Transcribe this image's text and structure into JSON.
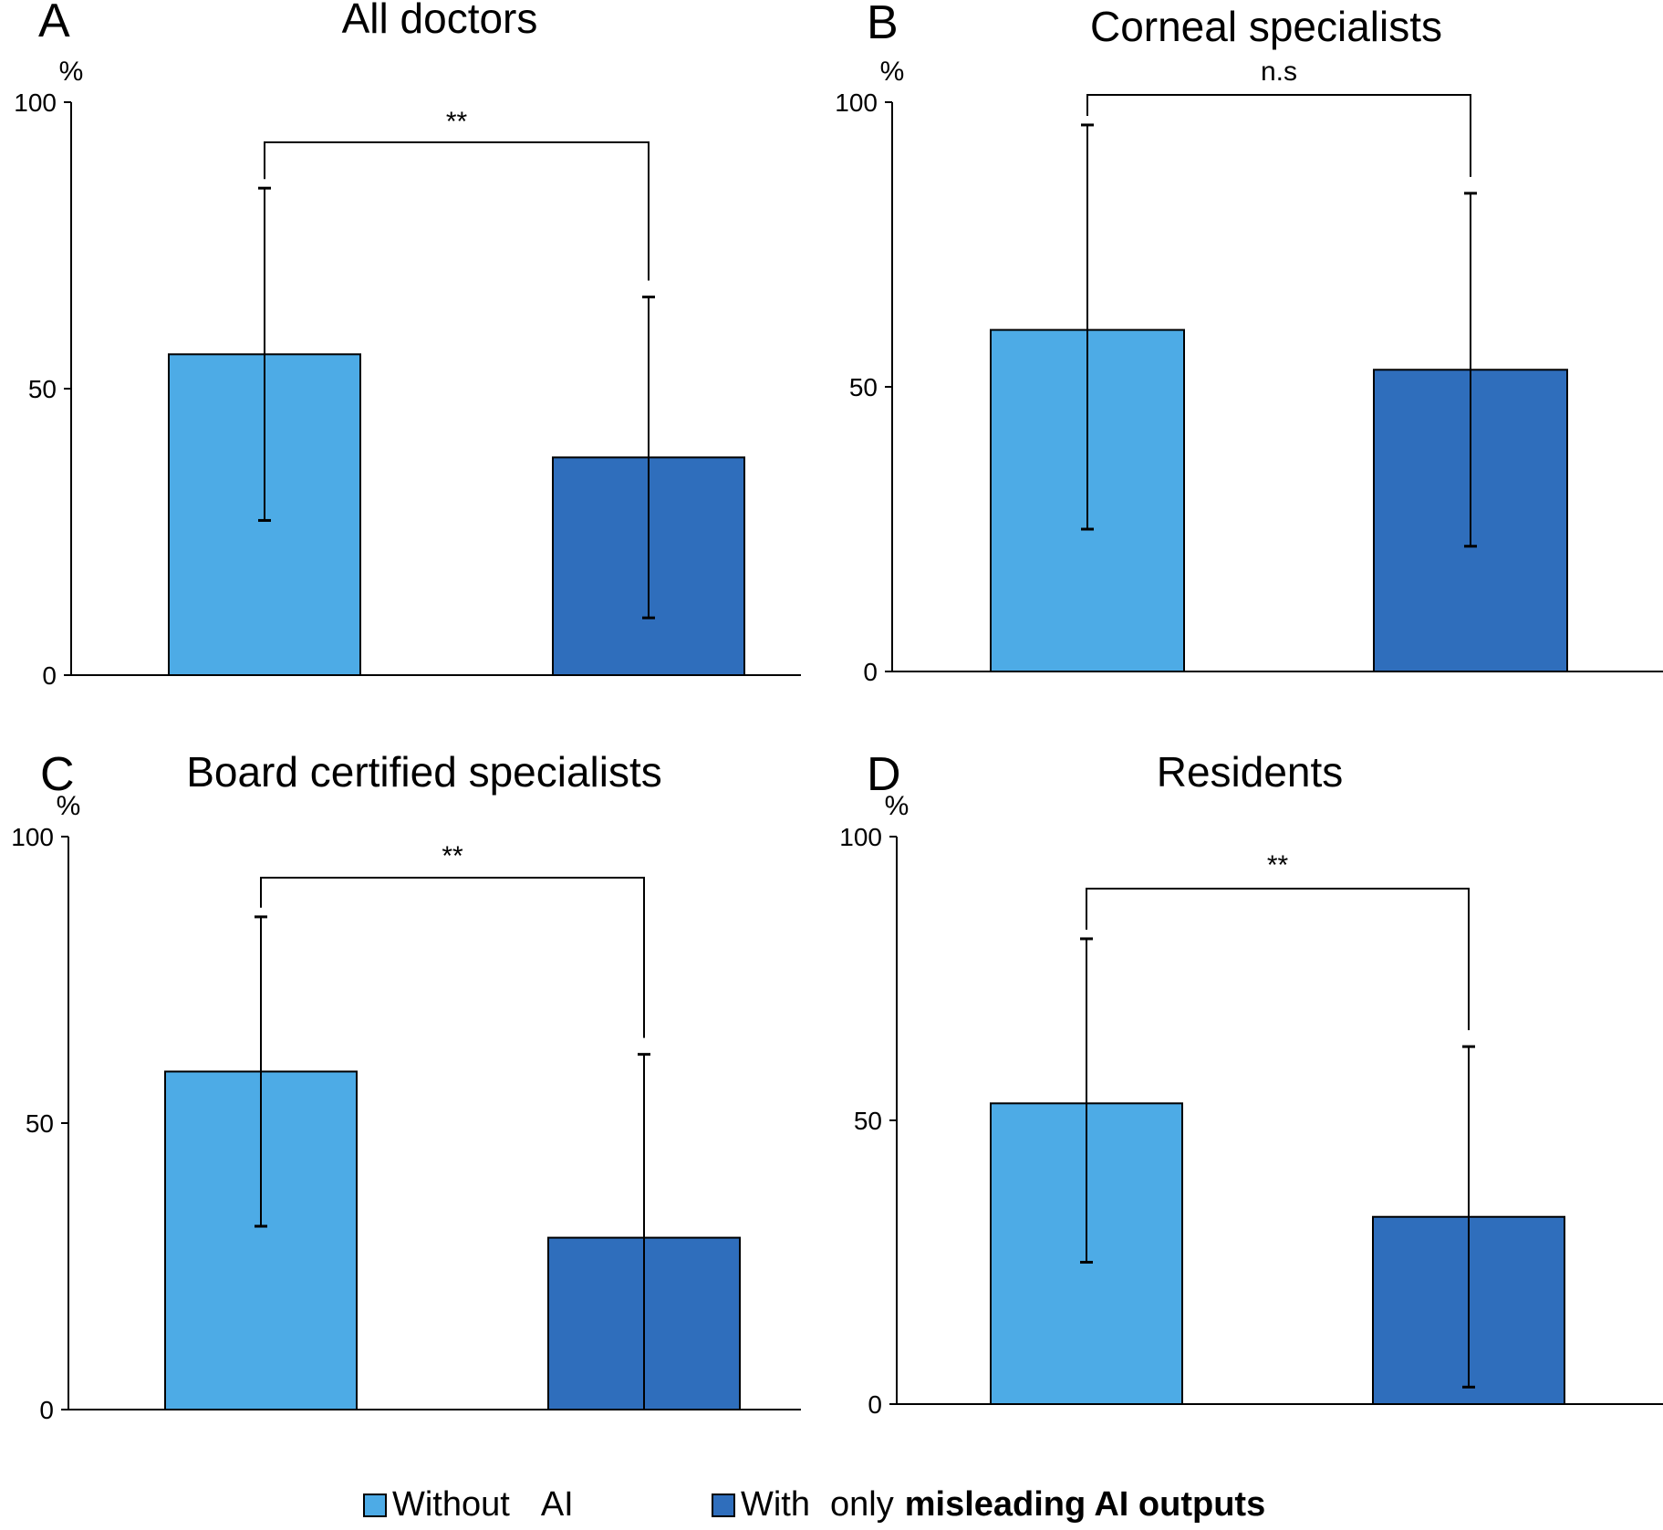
{
  "colors": {
    "without_ai": "#4DABE6",
    "with_misleading_ai": "#2F6EBC",
    "axis": "#000000"
  },
  "legend": {
    "without_ai": {
      "label_main": "Without",
      "label_suffix": "AI"
    },
    "with_misleading_ai": {
      "label_main": "With",
      "label_mid": "only",
      "label_bold": "misleading AI outputs"
    }
  },
  "chart_data": [
    {
      "type": "bar",
      "panel": "A",
      "title": "All doctors",
      "ylabel": "%",
      "ylim": [
        0,
        100
      ],
      "yticks": [
        0,
        50,
        100
      ],
      "categories": [
        "Without AI",
        "With only misleading AI outputs"
      ],
      "values": [
        56,
        38
      ],
      "error_low": [
        27,
        10
      ],
      "error_high": [
        85,
        66
      ],
      "significance": "**"
    },
    {
      "type": "bar",
      "panel": "B",
      "title": "Corneal specialists",
      "ylabel": "%",
      "ylim": [
        0,
        100
      ],
      "yticks": [
        0,
        50,
        100
      ],
      "categories": [
        "Without AI",
        "With only misleading AI outputs"
      ],
      "values": [
        60,
        53
      ],
      "error_low": [
        25,
        22
      ],
      "error_high": [
        96,
        84
      ],
      "significance": "n.s"
    },
    {
      "type": "bar",
      "panel": "C",
      "title": "Board certified specialists",
      "ylabel": "%",
      "ylim": [
        0,
        100
      ],
      "yticks": [
        0,
        50,
        100
      ],
      "categories": [
        "Without AI",
        "With only misleading AI outputs"
      ],
      "values": [
        59,
        30
      ],
      "error_low": [
        32,
        0
      ],
      "error_high": [
        86,
        62
      ],
      "significance": "**"
    },
    {
      "type": "bar",
      "panel": "D",
      "title": "Residents",
      "ylabel": "%",
      "ylim": [
        0,
        100
      ],
      "yticks": [
        0,
        50,
        100
      ],
      "categories": [
        "Without AI",
        "With only misleading AI outputs"
      ],
      "values": [
        53,
        33
      ],
      "error_low": [
        25,
        3
      ],
      "error_high": [
        82,
        63
      ],
      "significance": "**"
    }
  ]
}
